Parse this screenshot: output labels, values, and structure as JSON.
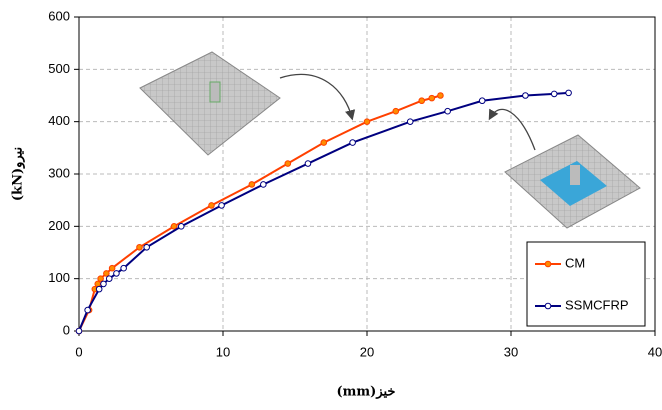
{
  "chart_data": {
    "type": "line",
    "x_label": "(mm)خیز",
    "y_label": "(kN)نیرو",
    "xlim": [
      0,
      40
    ],
    "xticks": [
      0,
      10,
      20,
      30,
      40
    ],
    "ylim": [
      0,
      600
    ],
    "yticks": [
      0,
      100,
      200,
      300,
      400,
      500,
      600
    ],
    "grid": true,
    "legend": "lower right",
    "series": [
      {
        "name": "CM",
        "color": "#ff4000",
        "marker_fill": "#ff8c00",
        "x": [
          0,
          0.7,
          1.1,
          1.3,
          1.5,
          1.9,
          2.3,
          4.2,
          6.6,
          9.2,
          12,
          14.5,
          17,
          20,
          22,
          23.8,
          24.5,
          25.1
        ],
        "values": [
          0,
          40,
          80,
          90,
          100,
          110,
          120,
          160,
          200,
          240,
          280,
          320,
          360,
          400,
          420,
          440,
          445,
          450
        ]
      },
      {
        "name": "SSMCFRP",
        "color": "#000080",
        "marker_fill": "#ffffff",
        "x": [
          0,
          0.6,
          1.4,
          1.7,
          2.1,
          2.6,
          3.1,
          4.7,
          7.1,
          9.9,
          12.8,
          15.9,
          19,
          23,
          25.6,
          28,
          31,
          33,
          34
        ],
        "values": [
          0,
          40,
          80,
          90,
          100,
          110,
          120,
          160,
          200,
          240,
          280,
          320,
          360,
          400,
          420,
          440,
          450,
          453,
          455
        ]
      }
    ]
  }
}
